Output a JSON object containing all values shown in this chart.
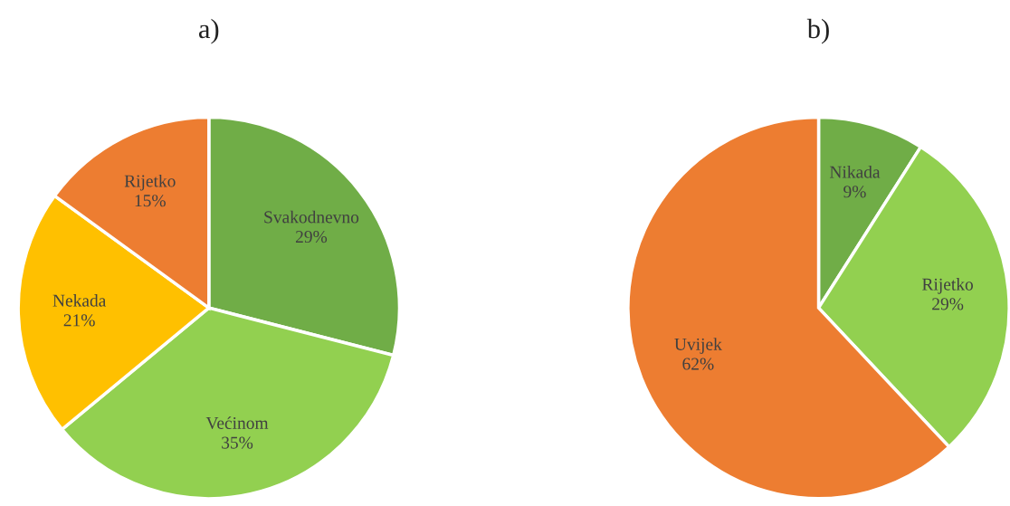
{
  "chart_data": [
    {
      "type": "pie",
      "title": "a)",
      "categories": [
        "Svakodnevno",
        "Većinom",
        "Nekada",
        "Rijetko"
      ],
      "values": [
        29,
        35,
        21,
        15
      ],
      "colors": [
        "#70ad47",
        "#92d050",
        "#ffc000",
        "#ed7d31"
      ],
      "value_labels": [
        "29%",
        "35%",
        "21%",
        "15%"
      ],
      "legend": false
    },
    {
      "type": "pie",
      "title": "b)",
      "categories": [
        "Nikada",
        "Rijetko",
        "Uvijek"
      ],
      "values": [
        9,
        29,
        62
      ],
      "colors": [
        "#70ad47",
        "#92d050",
        "#ed7d31"
      ],
      "value_labels": [
        "9%",
        "29%",
        "62%"
      ],
      "legend": false
    }
  ]
}
